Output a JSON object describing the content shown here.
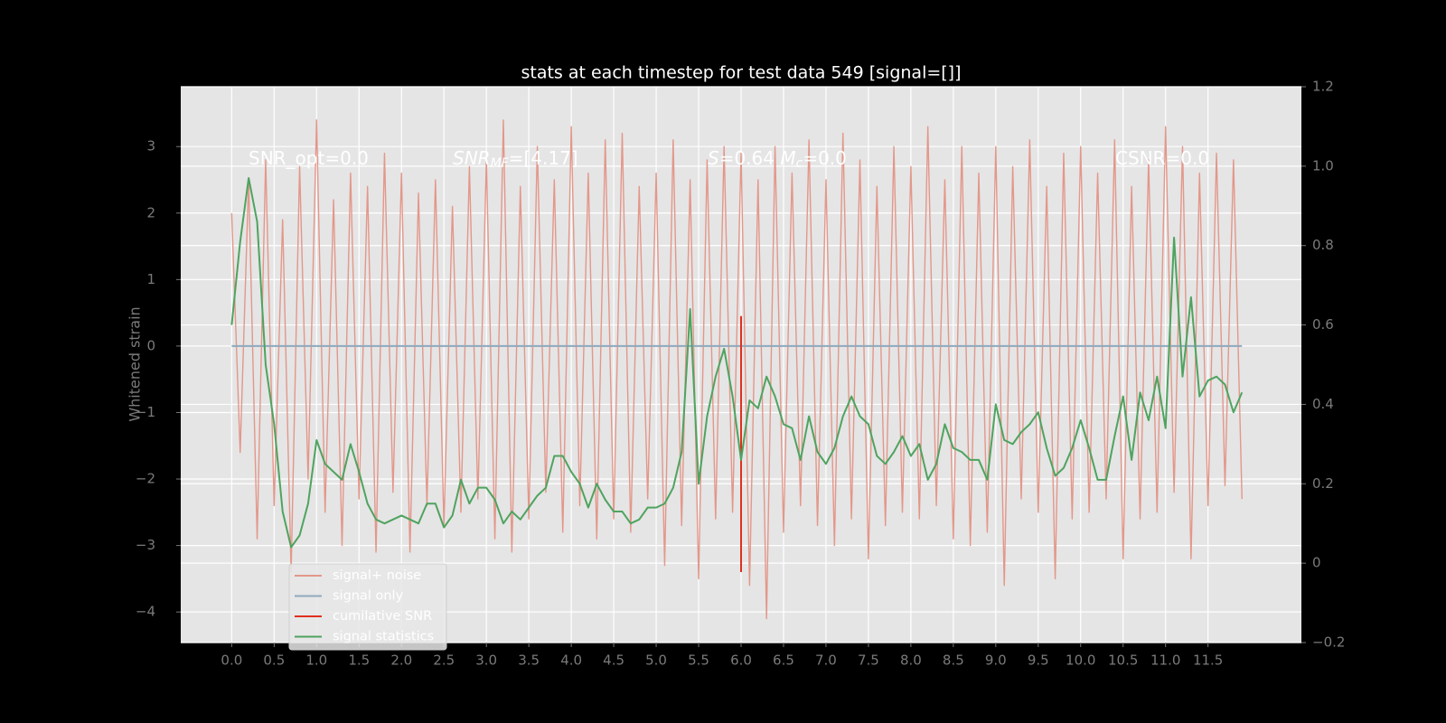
{
  "chart_data": {
    "type": "line",
    "title": "stats at each timestep for test data 549 [signal=[]]",
    "ylabel": "Whitened strain",
    "x": [
      0.0,
      0.1,
      0.2,
      0.3,
      0.4,
      0.5,
      0.6,
      0.7,
      0.8,
      0.9,
      1.0,
      1.1,
      1.2,
      1.3,
      1.4,
      1.5,
      1.6,
      1.7,
      1.8,
      1.9,
      2.0,
      2.1,
      2.2,
      2.3,
      2.4,
      2.5,
      2.6,
      2.7,
      2.8,
      2.9,
      3.0,
      3.1,
      3.2,
      3.3,
      3.4,
      3.5,
      3.6,
      3.7,
      3.8,
      3.9,
      4.0,
      4.1,
      4.2,
      4.3,
      4.4,
      4.5,
      4.6,
      4.7,
      4.8,
      4.9,
      5.0,
      5.1,
      5.2,
      5.3,
      5.4,
      5.5,
      5.6,
      5.7,
      5.8,
      5.9,
      6.0,
      6.1,
      6.2,
      6.3,
      6.4,
      6.5,
      6.6,
      6.7,
      6.8,
      6.9,
      7.0,
      7.1,
      7.2,
      7.3,
      7.4,
      7.5,
      7.6,
      7.7,
      7.8,
      7.9,
      8.0,
      8.1,
      8.2,
      8.3,
      8.4,
      8.5,
      8.6,
      8.7,
      8.8,
      8.9,
      9.0,
      9.1,
      9.2,
      9.3,
      9.4,
      9.5,
      9.6,
      9.7,
      9.8,
      9.9,
      10.0,
      10.1,
      10.2,
      10.3,
      10.4,
      10.5,
      10.6,
      10.7,
      10.8,
      10.9,
      11.0,
      11.1,
      11.2,
      11.3,
      11.4,
      11.5,
      11.6,
      11.7,
      11.8,
      11.9
    ],
    "series": [
      {
        "name": "signal+ noise",
        "color": "#e3978a",
        "axis": "y",
        "values": [
          2.0,
          -1.6,
          2.5,
          -2.9,
          2.8,
          -2.4,
          1.9,
          -3.4,
          2.7,
          -2.0,
          3.4,
          -2.5,
          2.2,
          -3.0,
          2.6,
          -2.3,
          2.4,
          -3.1,
          2.9,
          -2.2,
          2.6,
          -3.1,
          2.3,
          -2.4,
          2.5,
          -2.7,
          2.1,
          -2.5,
          2.7,
          -2.3,
          2.8,
          -2.9,
          3.4,
          -3.1,
          2.4,
          -2.6,
          3.0,
          -2.2,
          2.5,
          -2.8,
          3.3,
          -2.4,
          2.6,
          -2.9,
          3.1,
          -2.6,
          3.2,
          -2.8,
          2.4,
          -2.3,
          2.6,
          -3.3,
          3.1,
          -2.7,
          2.5,
          -3.5,
          2.8,
          -2.6,
          3.0,
          -2.5,
          2.9,
          -3.6,
          2.5,
          -4.1,
          3.0,
          -2.8,
          2.6,
          -2.4,
          3.1,
          -2.7,
          2.5,
          -3.0,
          3.2,
          -2.6,
          2.8,
          -3.2,
          2.4,
          -2.7,
          3.0,
          -2.5,
          2.7,
          -2.6,
          3.3,
          -2.4,
          2.5,
          -2.9,
          3.0,
          -3.0,
          2.6,
          -2.8,
          3.0,
          -3.6,
          2.7,
          -2.3,
          3.1,
          -2.5,
          2.4,
          -3.5,
          2.9,
          -2.6,
          3.0,
          -2.5,
          2.6,
          -2.3,
          3.1,
          -3.2,
          2.4,
          -2.6,
          2.8,
          -2.5,
          3.3,
          -2.2,
          3.0,
          -3.2,
          2.6,
          -2.4,
          2.9,
          -2.1,
          2.8,
          -2.3
        ]
      },
      {
        "name": "signal only",
        "color": "#8fa9bc",
        "axis": "y",
        "values": [
          0,
          0,
          0,
          0,
          0,
          0,
          0,
          0,
          0,
          0,
          0,
          0,
          0,
          0,
          0,
          0,
          0,
          0,
          0,
          0,
          0,
          0,
          0,
          0,
          0,
          0,
          0,
          0,
          0,
          0,
          0,
          0,
          0,
          0,
          0,
          0,
          0,
          0,
          0,
          0,
          0,
          0,
          0,
          0,
          0,
          0,
          0,
          0,
          0,
          0,
          0,
          0,
          0,
          0,
          0,
          0,
          0,
          0,
          0,
          0,
          0,
          0,
          0,
          0,
          0,
          0,
          0,
          0,
          0,
          0,
          0,
          0,
          0,
          0,
          0,
          0,
          0,
          0,
          0,
          0,
          0,
          0,
          0,
          0,
          0,
          0,
          0,
          0,
          0,
          0,
          0,
          0,
          0,
          0,
          0,
          0,
          0,
          0,
          0,
          0,
          0,
          0,
          0,
          0,
          0,
          0,
          0,
          0,
          0,
          0,
          0,
          0,
          0,
          0,
          0,
          0,
          0,
          0,
          0,
          0
        ]
      },
      {
        "name": "cumilative SNR",
        "color": "#e0301e",
        "axis": "y",
        "x": [
          6.0,
          6.0
        ],
        "values": [
          0.45,
          -3.4
        ]
      },
      {
        "name": "signal statistics",
        "color": "#4fa35f",
        "axis": "y2",
        "values": [
          0.6,
          0.81,
          0.97,
          0.86,
          0.5,
          0.35,
          0.13,
          0.04,
          0.07,
          0.15,
          0.31,
          0.25,
          0.23,
          0.21,
          0.3,
          0.23,
          0.15,
          0.11,
          0.1,
          0.11,
          0.12,
          0.11,
          0.1,
          0.15,
          0.15,
          0.09,
          0.12,
          0.21,
          0.15,
          0.19,
          0.19,
          0.16,
          0.1,
          0.13,
          0.11,
          0.14,
          0.17,
          0.19,
          0.27,
          0.27,
          0.23,
          0.2,
          0.14,
          0.2,
          0.16,
          0.13,
          0.13,
          0.1,
          0.11,
          0.14,
          0.14,
          0.15,
          0.19,
          0.28,
          0.64,
          0.2,
          0.37,
          0.47,
          0.54,
          0.42,
          0.26,
          0.41,
          0.39,
          0.47,
          0.42,
          0.35,
          0.34,
          0.26,
          0.37,
          0.28,
          0.25,
          0.29,
          0.37,
          0.42,
          0.37,
          0.35,
          0.27,
          0.25,
          0.28,
          0.32,
          0.27,
          0.3,
          0.21,
          0.25,
          0.35,
          0.29,
          0.28,
          0.26,
          0.26,
          0.21,
          0.4,
          0.31,
          0.3,
          0.33,
          0.35,
          0.38,
          0.29,
          0.22,
          0.24,
          0.29,
          0.36,
          0.29,
          0.21,
          0.21,
          0.32,
          0.42,
          0.26,
          0.43,
          0.36,
          0.47,
          0.34,
          0.82,
          0.47,
          0.67,
          0.42,
          0.46,
          0.47,
          0.45,
          0.38,
          0.43
        ]
      }
    ],
    "annotations": [
      {
        "parts": [
          {
            "text": "SNR_opt=0.0"
          }
        ]
      },
      {
        "parts": [
          {
            "text": "SNR",
            "italic": true
          },
          {
            "text": "MF",
            "italic": true,
            "sub": true
          },
          {
            "text": "=[4.17]"
          }
        ]
      },
      {
        "parts": [
          {
            "text": "S",
            "italic": true
          },
          {
            "text": "=0.64  "
          },
          {
            "text": "M",
            "italic": true
          },
          {
            "text": "c",
            "italic": true,
            "sub": true
          },
          {
            "text": "=0.0"
          }
        ]
      },
      {
        "parts": [
          {
            "text": "CSNR=0.0"
          }
        ]
      }
    ],
    "xlim": [
      -0.6,
      12.6
    ],
    "xticks": [
      {
        "value": 0,
        "label": "0.0"
      },
      0.5,
      {
        "value": 1,
        "label": "1.0"
      },
      1.5,
      {
        "value": 2,
        "label": "2.0"
      },
      2.5,
      {
        "value": 3,
        "label": "3.0"
      },
      3.5,
      {
        "value": 4,
        "label": "4.0"
      },
      4.5,
      {
        "value": 5,
        "label": "5.0"
      },
      5.5,
      {
        "value": 6,
        "label": "6.0"
      },
      6.5,
      {
        "value": 7,
        "label": "7.0"
      },
      7.5,
      {
        "value": 8,
        "label": "8.0"
      },
      8.5,
      {
        "value": 9,
        "label": "9.0"
      },
      9.5,
      {
        "value": 10,
        "label": "10.0"
      },
      10.5,
      {
        "value": 11,
        "label": "11.0"
      },
      11.5
    ],
    "ylim": [
      -4.46,
      3.9
    ],
    "yticks": [
      {
        "value": -4,
        "label": "−4"
      },
      {
        "value": -3,
        "label": "−3"
      },
      {
        "value": -2,
        "label": "−2"
      },
      {
        "value": -1,
        "label": "−1"
      },
      0,
      1,
      2,
      3
    ],
    "y2lim": [
      -0.2,
      1.2
    ],
    "y2ticks": [
      {
        "value": -0.2,
        "label": "−0.2"
      },
      0.0,
      0.2,
      0.4,
      0.6,
      0.8,
      {
        "value": 1,
        "label": "1.0"
      },
      1.2
    ],
    "grid": true,
    "legend": "lower left"
  }
}
